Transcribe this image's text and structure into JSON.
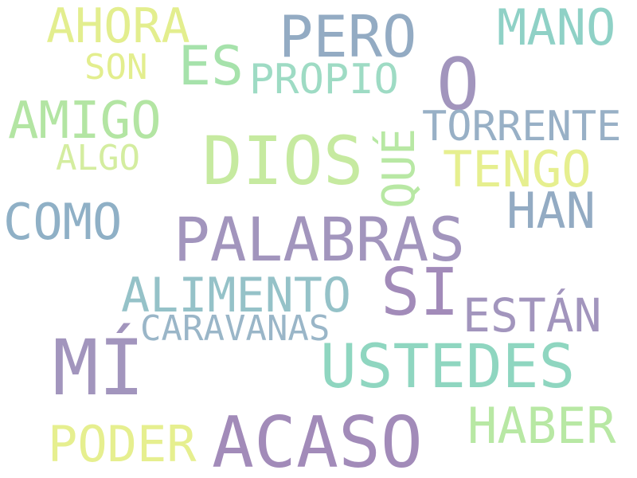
{
  "words": [
    {
      "text": "AHORA",
      "color": "#e3ee8e"
    },
    {
      "text": "PERO",
      "color": "#93abc3"
    },
    {
      "text": "MANO",
      "color": "#8fd1c6"
    },
    {
      "text": "ES",
      "color": "#a6e2ab"
    },
    {
      "text": "SON",
      "color": "#e3ee8e"
    },
    {
      "text": "PROPIO",
      "color": "#9edbc4"
    },
    {
      "text": "O",
      "color": "#a295bd"
    },
    {
      "text": "AMIGO",
      "color": "#b3e5a3"
    },
    {
      "text": "DIOS",
      "color": "#c6eaa0"
    },
    {
      "text": "QUÉ",
      "color": "#b8e8a4"
    },
    {
      "text": "TORRENTE",
      "color": "#98b0c6"
    },
    {
      "text": "ALGO",
      "color": "#d4eda0"
    },
    {
      "text": "TENGO",
      "color": "#e6ef8f"
    },
    {
      "text": "HAN",
      "color": "#93abc3"
    },
    {
      "text": "COMO",
      "color": "#8fb0c6"
    },
    {
      "text": "PALABRAS",
      "color": "#a295bd"
    },
    {
      "text": "SI",
      "color": "#a28bb9"
    },
    {
      "text": "ALIMENTO",
      "color": "#95c2c8"
    },
    {
      "text": "ESTÁN",
      "color": "#a295bd"
    },
    {
      "text": "CARAVANAS",
      "color": "#9ab6c8"
    },
    {
      "text": "MÍ",
      "color": "#a295bd"
    },
    {
      "text": "USTEDES",
      "color": "#8fd6c0"
    },
    {
      "text": "HABER",
      "color": "#b8e8a4"
    },
    {
      "text": "PODER",
      "color": "#e6ef8f"
    },
    {
      "text": "ACASO",
      "color": "#a28bb9"
    }
  ]
}
